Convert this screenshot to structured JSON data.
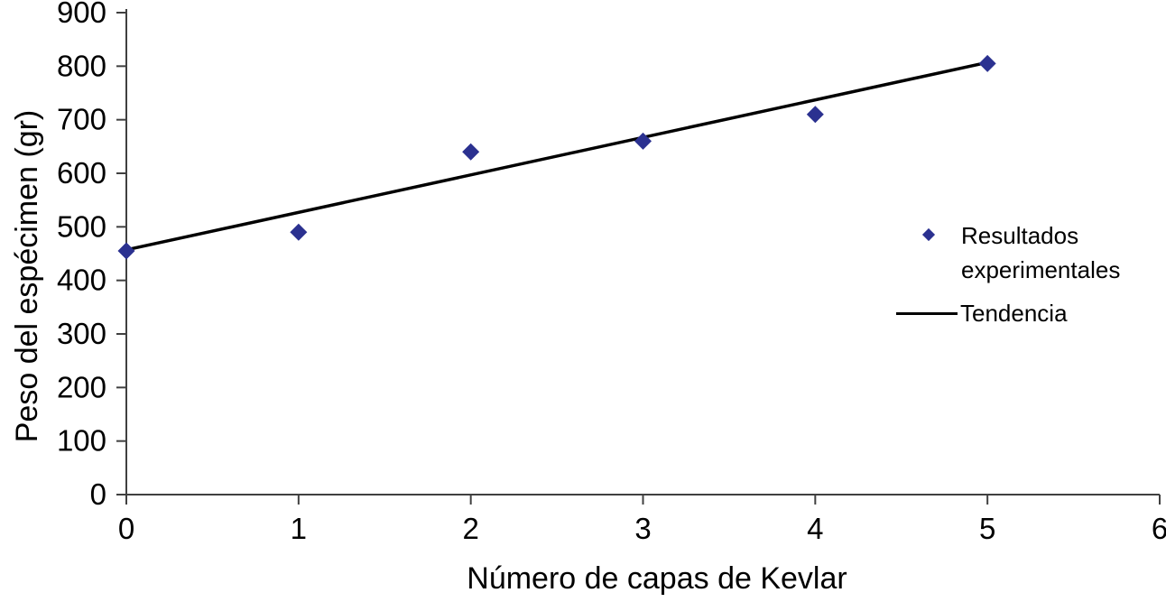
{
  "chart_data": {
    "type": "scatter",
    "title": "",
    "xlabel": "Número de capas de Kevlar",
    "ylabel": "Peso del espécimen (gr)",
    "x": [
      0,
      1,
      2,
      3,
      4,
      5
    ],
    "series": [
      {
        "name": "Resultados experimentales",
        "type": "scatter",
        "marker": "diamond",
        "values": [
          455,
          490,
          640,
          660,
          710,
          805
        ]
      },
      {
        "name": "Tendencia",
        "type": "line",
        "trend_endpoints": {
          "x": [
            0,
            5
          ],
          "y": [
            457,
            807
          ]
        }
      }
    ],
    "xlim": [
      0,
      6
    ],
    "ylim": [
      0,
      900
    ],
    "x_ticks": [
      "0",
      "1",
      "2",
      "3",
      "4",
      "5",
      "6"
    ],
    "y_ticks": [
      "0",
      "100",
      "200",
      "300",
      "400",
      "500",
      "600",
      "700",
      "800",
      "900"
    ],
    "grid": false,
    "legend_position": "right-middle",
    "legend": {
      "items": [
        {
          "label": "Resultados experimentales",
          "lines": [
            "Resultados",
            "experimentales"
          ],
          "marker": "diamond"
        },
        {
          "label": "Tendencia",
          "lines": [
            "Tendencia"
          ],
          "marker": "line"
        }
      ]
    }
  },
  "colors": {
    "marker": "#2b3190",
    "trend_line": "#000000",
    "axis": "#404040",
    "text": "#000000",
    "background": "#ffffff"
  }
}
